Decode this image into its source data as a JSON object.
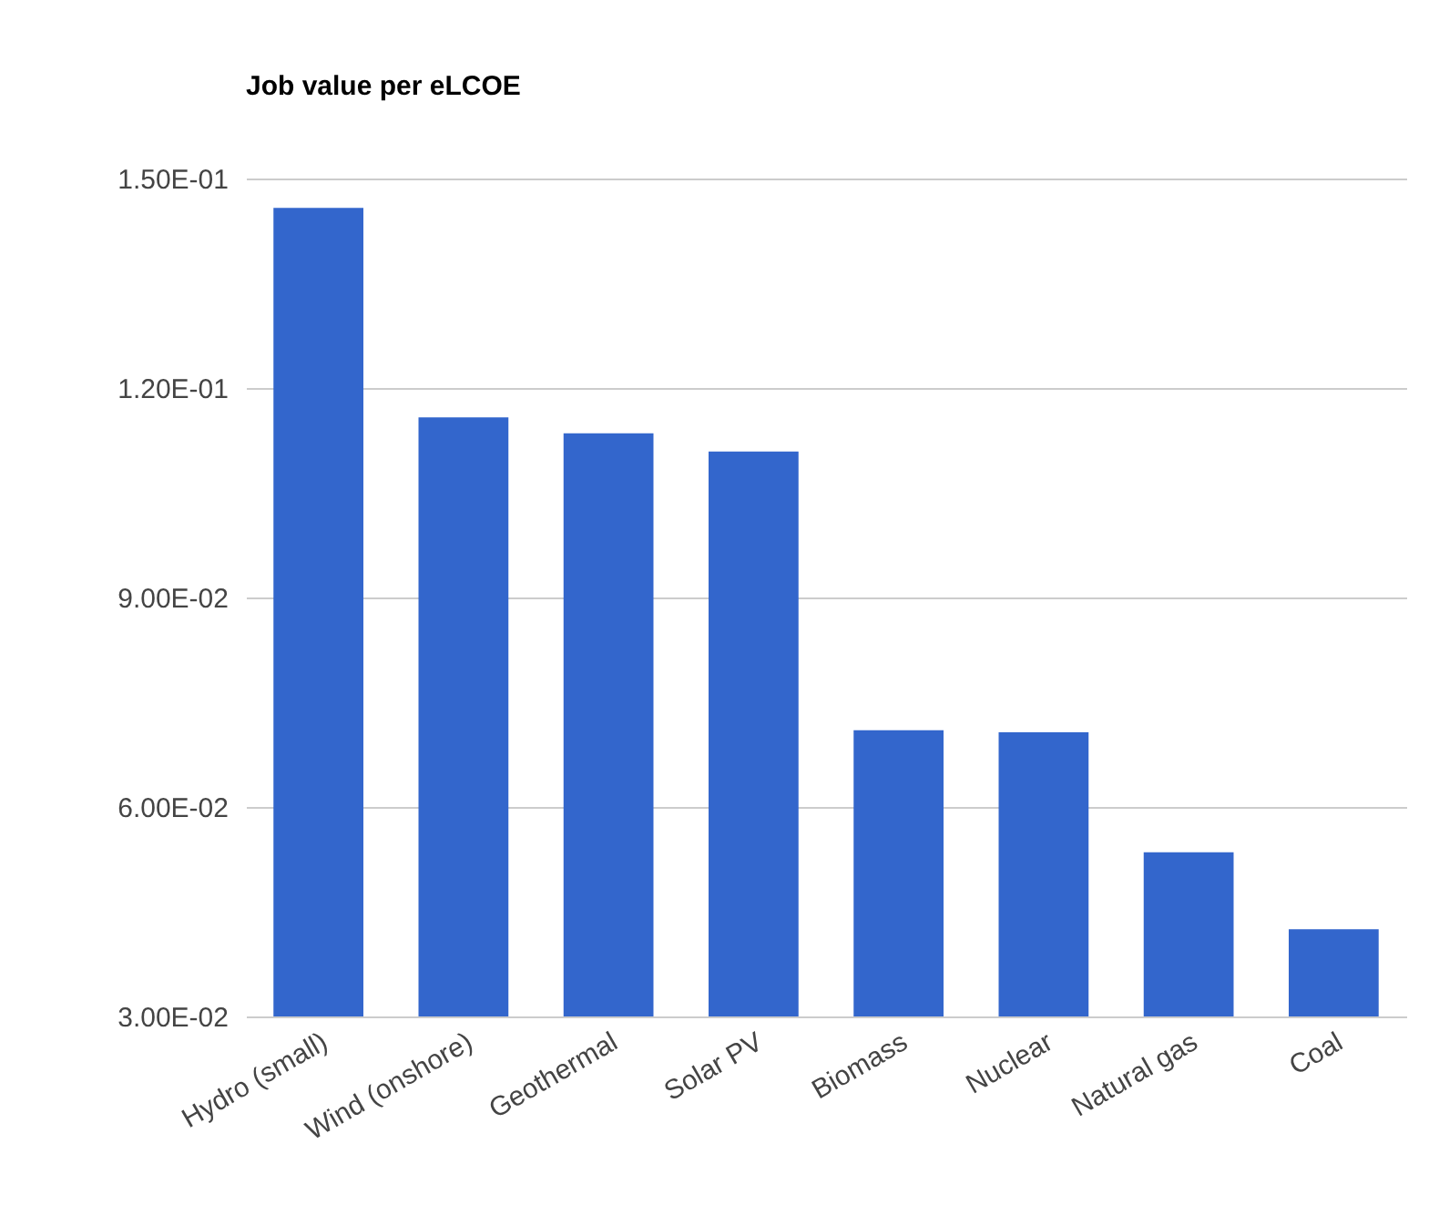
{
  "chart_data": {
    "type": "bar",
    "title": "Job value per eLCOE",
    "categories": [
      "Hydro (small)",
      "Wind (onshore)",
      "Geothermal",
      "Solar PV",
      "Biomass",
      "Nuclear",
      "Natural gas",
      "Coal"
    ],
    "values": [
      0.1458,
      0.1158,
      0.1135,
      0.1109,
      0.071,
      0.0707,
      0.0535,
      0.0425
    ],
    "color": "#3366cc",
    "ylim": [
      0.03,
      0.15
    ],
    "yticks": [
      {
        "value": 0.03,
        "label": "3.00E-02"
      },
      {
        "value": 0.06,
        "label": "6.00E-02"
      },
      {
        "value": 0.09,
        "label": "9.00E-02"
      },
      {
        "value": 0.12,
        "label": "1.20E-01"
      },
      {
        "value": 0.15,
        "label": "1.50E-01"
      }
    ],
    "grid": "y"
  }
}
